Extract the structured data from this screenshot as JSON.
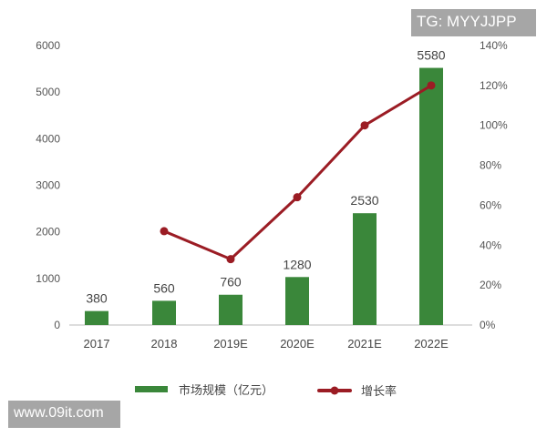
{
  "chart_data": {
    "type": "bar+line",
    "title": "",
    "categories": [
      "2017",
      "2018",
      "2019E",
      "2020E",
      "2021E",
      "2022E"
    ],
    "series": [
      {
        "name": "市场规模（亿元）",
        "type": "bar",
        "axis": "left",
        "color": "#3a873a",
        "values": [
          380,
          560,
          760,
          1280,
          2530,
          5580
        ],
        "drawn_heights": [
          300,
          520,
          650,
          1030,
          2400,
          5520
        ],
        "labels": [
          "380",
          "560",
          "760",
          "1280",
          "2530",
          "5580"
        ]
      },
      {
        "name": "增长率",
        "type": "line",
        "axis": "right",
        "color": "#9b1c24",
        "values": [
          null,
          47,
          33,
          64,
          100,
          120
        ],
        "unit": "%"
      }
    ],
    "left_axis": {
      "ylim": [
        0,
        6000
      ],
      "ticks": [
        "0",
        "1000",
        "2000",
        "3000",
        "4000",
        "5000",
        "6000"
      ]
    },
    "right_axis": {
      "ylim": [
        0,
        140
      ],
      "ticks": [
        "0%",
        "20%",
        "40%",
        "60%",
        "80%",
        "100%",
        "120%",
        "140%"
      ]
    },
    "xlabel": "",
    "ylabel": "",
    "grid": false,
    "legend_position": "bottom"
  },
  "legend": {
    "bar_label": "市场规模（亿元）",
    "line_label": "增长率"
  },
  "watermarks": {
    "top": "TG: MYYJJPP",
    "bottom": "www.09it.com"
  }
}
